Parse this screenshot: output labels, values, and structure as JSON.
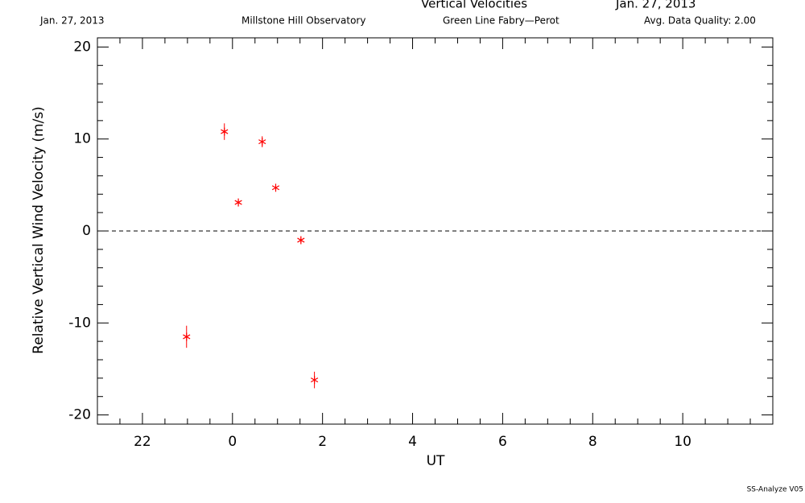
{
  "chart_data": {
    "type": "scatter",
    "title": "Vertical Velocities",
    "title_date": "Jan. 27, 2013",
    "subtitles": [
      "Jan. 27, 2013",
      "Millstone Hill Observatory",
      "Green Line Fabry—Perot",
      "Avg. Data Quality: 2.00"
    ],
    "footer": "SS-Analyze V05",
    "xlabel": "UT",
    "ylabel": "Relative Vertical Wind Velocity (m/s)",
    "x": [
      -1.02,
      -0.18,
      0.13,
      0.66,
      0.96,
      1.52,
      1.82
    ],
    "values": [
      -11.5,
      10.8,
      3.1,
      9.7,
      4.7,
      -1.0,
      -16.2
    ],
    "errors": [
      1.2,
      0.9,
      0.3,
      0.6,
      0.3,
      0.3,
      0.9
    ],
    "color": "#ff0000",
    "reference_line": 0,
    "xlim": [
      -3,
      12
    ],
    "xticks": [
      {
        "value": -2,
        "label": "22"
      },
      0,
      2,
      4,
      6,
      8,
      10
    ],
    "ylim": [
      -21,
      21
    ],
    "yticks": [
      -20,
      -10,
      0,
      10,
      20
    ]
  }
}
